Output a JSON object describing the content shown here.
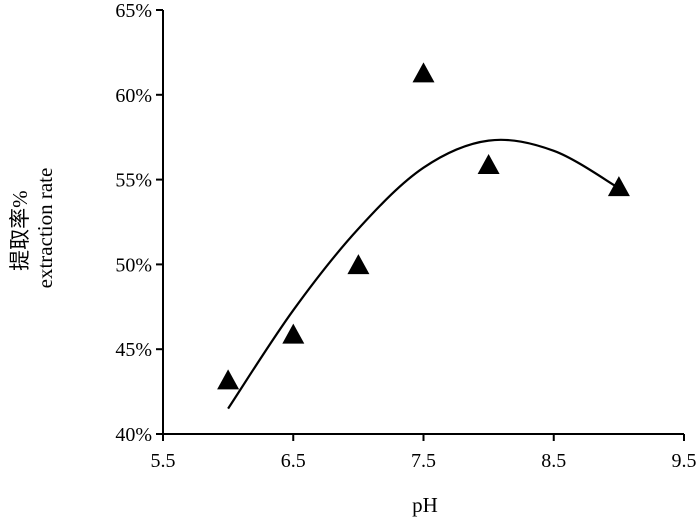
{
  "chart_data": {
    "type": "scatter",
    "title": "",
    "xlabel": "pH",
    "ylabel": [
      "提取率%",
      "extraction rate"
    ],
    "xlim": [
      5.5,
      9.5
    ],
    "ylim": [
      0.4,
      0.65
    ],
    "x_ticks": [
      "5.5",
      "6.5",
      "7.5",
      "8.5",
      "9.5"
    ],
    "x_tick_values": [
      5.5,
      6.5,
      7.5,
      8.5,
      9.5
    ],
    "y_ticks": [
      "40%",
      "45%",
      "50%",
      "55%",
      "60%",
      "65%"
    ],
    "y_tick_values": [
      0.4,
      0.45,
      0.5,
      0.55,
      0.6,
      0.65
    ],
    "grid": false,
    "marker": "triangle",
    "series": [
      {
        "x": [
          6.0,
          6.5,
          7.0,
          7.5,
          8.0,
          9.0
        ],
        "y": [
          0.431,
          0.458,
          0.499,
          0.612,
          0.558,
          0.545
        ]
      }
    ],
    "trendline": {
      "type": "polynomial",
      "x_range": [
        6.0,
        9.0
      ],
      "x": [
        6.0,
        6.5,
        7.0,
        7.5,
        8.0,
        8.5,
        9.0
      ],
      "y": [
        0.415,
        0.473,
        0.521,
        0.557,
        0.573,
        0.567,
        0.545
      ]
    }
  }
}
